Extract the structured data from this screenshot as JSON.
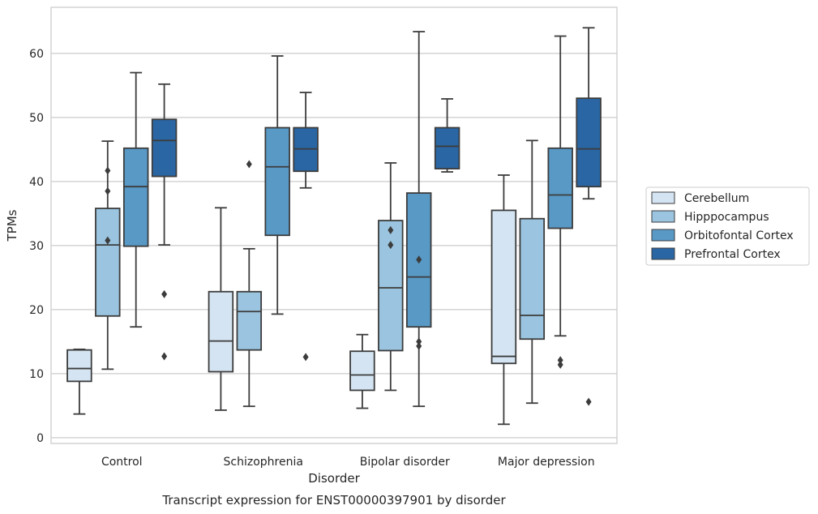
{
  "chart_data": {
    "type": "box",
    "title": "",
    "caption": "Transcript expression for ENST00000397901 by disorder",
    "xlabel": "Disorder",
    "ylabel": "TPMs",
    "ylim": [
      -0.9,
      67.2
    ],
    "yticks": [
      "0",
      "10",
      "20",
      "30",
      "40",
      "50",
      "60"
    ],
    "grid": "horizontal",
    "legend_position": "right",
    "categories": [
      "Control",
      "Schizophrenia",
      "Bipolar disorder",
      "Major depression"
    ],
    "series": [
      {
        "name": "Cerebellum",
        "color": "#d4e4f2",
        "boxes": [
          {
            "whislo": 3.7,
            "q1": 8.8,
            "med": 10.8,
            "q3": 13.7,
            "whishi": 13.8,
            "fliers": []
          },
          {
            "whislo": 4.3,
            "q1": 10.3,
            "med": 15.1,
            "q3": 22.8,
            "whishi": 35.9,
            "fliers": []
          },
          {
            "whislo": 4.6,
            "q1": 7.4,
            "med": 9.8,
            "q3": 13.5,
            "whishi": 16.1,
            "fliers": []
          },
          {
            "whislo": 2.1,
            "q1": 11.6,
            "med": 12.7,
            "q3": 35.5,
            "whishi": 41.0,
            "fliers": []
          }
        ]
      },
      {
        "name": "Hipppocampus",
        "color": "#9ac4df",
        "boxes": [
          {
            "whislo": 10.7,
            "q1": 19.0,
            "med": 30.1,
            "q3": 35.8,
            "whishi": 46.3,
            "fliers": [
              41.7,
              38.5,
              30.8
            ]
          },
          {
            "whislo": 4.9,
            "q1": 13.7,
            "med": 19.7,
            "q3": 22.8,
            "whishi": 29.5,
            "fliers": [
              42.7
            ]
          },
          {
            "whislo": 7.4,
            "q1": 13.6,
            "med": 23.4,
            "q3": 33.9,
            "whishi": 42.9,
            "fliers": [
              32.4,
              30.1
            ]
          },
          {
            "whislo": 5.4,
            "q1": 15.4,
            "med": 19.1,
            "q3": 34.2,
            "whishi": 46.4,
            "fliers": []
          }
        ]
      },
      {
        "name": "Orbitofontal Cortex",
        "color": "#5899c6",
        "boxes": [
          {
            "whislo": 17.3,
            "q1": 29.9,
            "med": 39.2,
            "q3": 45.2,
            "whishi": 57.0,
            "fliers": []
          },
          {
            "whislo": 19.3,
            "q1": 31.6,
            "med": 42.3,
            "q3": 48.4,
            "whishi": 59.6,
            "fliers": []
          },
          {
            "whislo": 4.9,
            "q1": 17.3,
            "med": 25.1,
            "q3": 38.2,
            "whishi": 63.4,
            "fliers": [
              27.8,
              15.0,
              14.3
            ]
          },
          {
            "whislo": 15.9,
            "q1": 32.7,
            "med": 37.9,
            "q3": 45.2,
            "whishi": 62.7,
            "fliers": [
              12.1,
              11.4
            ]
          }
        ]
      },
      {
        "name": "Prefrontal Cortex",
        "color": "#2a66a3",
        "boxes": [
          {
            "whislo": 30.1,
            "q1": 40.8,
            "med": 46.4,
            "q3": 49.7,
            "whishi": 55.2,
            "fliers": [
              22.4,
              12.7
            ]
          },
          {
            "whislo": 39.0,
            "q1": 41.6,
            "med": 45.1,
            "q3": 48.4,
            "whishi": 53.9,
            "fliers": [
              12.6
            ]
          },
          {
            "whislo": 41.5,
            "q1": 42.0,
            "med": 45.5,
            "q3": 48.4,
            "whishi": 52.9,
            "fliers": []
          },
          {
            "whislo": 37.3,
            "q1": 39.2,
            "med": 45.1,
            "q3": 53.0,
            "whishi": 64.0,
            "fliers": [
              5.6
            ]
          }
        ]
      }
    ]
  }
}
